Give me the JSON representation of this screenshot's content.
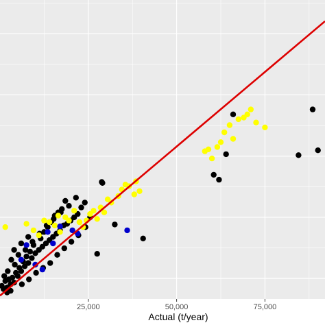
{
  "chart_data": {
    "type": "scatter",
    "title": "",
    "xlabel": "Actual (t/year)",
    "ylabel": "",
    "xlim": [
      0,
      92000
    ],
    "ylim": [
      0,
      91500
    ],
    "x_ticks": [
      25000,
      50000,
      75000
    ],
    "x_tick_labels": [
      "25,000",
      "50,000",
      "75,000"
    ],
    "y_gridlines": [
      6300,
      25000,
      43700,
      62500,
      81200
    ],
    "grid": true,
    "legend": "none",
    "colors": {
      "panel_background": "#ebebeb",
      "grid_major": "#ffffff",
      "regression_line": "#dd0000",
      "tick_label": "#4d4d4d"
    },
    "regression_line": {
      "x": [
        0,
        92000
      ],
      "y": [
        1000,
        85000
      ]
    },
    "series": [
      {
        "color": "#000000",
        "points": [
          [
            1000,
            3000
          ],
          [
            2000,
            3500
          ],
          [
            3000,
            4500
          ],
          [
            4000,
            5000
          ],
          [
            1500,
            5500
          ],
          [
            2500,
            6000
          ],
          [
            3500,
            6500
          ],
          [
            5000,
            7000
          ],
          [
            4500,
            8000
          ],
          [
            6000,
            8500
          ],
          [
            5500,
            9500
          ],
          [
            7000,
            10000
          ],
          [
            8000,
            11000
          ],
          [
            6500,
            11500
          ],
          [
            9000,
            12500
          ],
          [
            7500,
            13000
          ],
          [
            10000,
            14000
          ],
          [
            8500,
            14500
          ],
          [
            11000,
            15000
          ],
          [
            12000,
            16000
          ],
          [
            9500,
            16500
          ],
          [
            13000,
            17000
          ],
          [
            14000,
            18000
          ],
          [
            11500,
            18500
          ],
          [
            15000,
            19000
          ],
          [
            16000,
            20000
          ],
          [
            12500,
            20500
          ],
          [
            17000,
            21000
          ],
          [
            13500,
            22000
          ],
          [
            18000,
            22500
          ],
          [
            19000,
            23000
          ],
          [
            14500,
            23500
          ],
          [
            20000,
            24000
          ],
          [
            21000,
            25000
          ],
          [
            15500,
            25500
          ],
          [
            16500,
            26500
          ],
          [
            22000,
            26000
          ],
          [
            17500,
            27500
          ],
          [
            23000,
            28000
          ],
          [
            19500,
            28500
          ],
          [
            24000,
            29500
          ],
          [
            18500,
            30000
          ],
          [
            21500,
            31000
          ],
          [
            2000,
            2000
          ],
          [
            3000,
            2500
          ],
          [
            500,
            4000
          ],
          [
            1200,
            7000
          ],
          [
            2200,
            8500
          ],
          [
            4200,
            10500
          ],
          [
            3200,
            12000
          ],
          [
            6200,
            4500
          ],
          [
            8200,
            6000
          ],
          [
            10200,
            8000
          ],
          [
            12200,
            9500
          ],
          [
            14200,
            11000
          ],
          [
            16200,
            13500
          ],
          [
            18200,
            15500
          ],
          [
            20200,
            17500
          ],
          [
            22200,
            19500
          ],
          [
            24200,
            22000
          ],
          [
            5200,
            13500
          ],
          [
            7200,
            15000
          ],
          [
            9200,
            17500
          ],
          [
            11200,
            20000
          ],
          [
            13200,
            22500
          ],
          [
            15200,
            24500
          ],
          [
            17200,
            26500
          ],
          [
            4000,
            15000
          ],
          [
            6000,
            17000
          ],
          [
            8000,
            19000
          ],
          [
            25500,
            25000
          ],
          [
            27500,
            13800
          ],
          [
            28800,
            35800
          ],
          [
            29000,
            35500
          ],
          [
            32500,
            22800
          ],
          [
            40500,
            18500
          ],
          [
            60500,
            38000
          ],
          [
            62000,
            36500
          ],
          [
            64000,
            44300
          ],
          [
            66000,
            56500
          ],
          [
            84500,
            44000
          ],
          [
            88500,
            58000
          ],
          [
            90000,
            45500
          ]
        ]
      },
      {
        "color": "#ffff00",
        "points": [
          [
            1500,
            22000
          ],
          [
            7500,
            23000
          ],
          [
            9500,
            21000
          ],
          [
            11000,
            19500
          ],
          [
            12500,
            24000
          ],
          [
            14000,
            23500
          ],
          [
            15500,
            22500
          ],
          [
            16500,
            25500
          ],
          [
            17000,
            20500
          ],
          [
            18500,
            25000
          ],
          [
            19500,
            24000
          ],
          [
            21000,
            27000
          ],
          [
            22500,
            23500
          ],
          [
            23500,
            22000
          ],
          [
            24500,
            24000
          ],
          [
            25500,
            26000
          ],
          [
            26500,
            27000
          ],
          [
            27500,
            24500
          ],
          [
            28500,
            28000
          ],
          [
            29500,
            26500
          ],
          [
            30500,
            30500
          ],
          [
            31500,
            29500
          ],
          [
            33500,
            31500
          ],
          [
            34500,
            33500
          ],
          [
            35500,
            35000
          ],
          [
            36500,
            34500
          ],
          [
            38000,
            32000
          ],
          [
            38500,
            36000
          ],
          [
            39500,
            33000
          ],
          [
            58000,
            45200
          ],
          [
            59000,
            45800
          ],
          [
            60000,
            43000
          ],
          [
            61500,
            46500
          ],
          [
            62500,
            48000
          ],
          [
            63500,
            51000
          ],
          [
            65000,
            53200
          ],
          [
            66000,
            49000
          ],
          [
            67500,
            55000
          ],
          [
            69000,
            55500
          ],
          [
            70000,
            56500
          ],
          [
            71000,
            58000
          ],
          [
            72500,
            54000
          ],
          [
            75000,
            52500
          ]
        ]
      },
      {
        "color": "#0000cc",
        "points": [
          [
            6000,
            12000
          ],
          [
            7500,
            16500
          ],
          [
            10000,
            10500
          ],
          [
            12000,
            9000
          ],
          [
            13500,
            20500
          ],
          [
            15000,
            17000
          ],
          [
            17000,
            22200
          ],
          [
            20500,
            21000
          ],
          [
            22000,
            20000
          ],
          [
            36000,
            21000
          ]
        ]
      }
    ]
  }
}
